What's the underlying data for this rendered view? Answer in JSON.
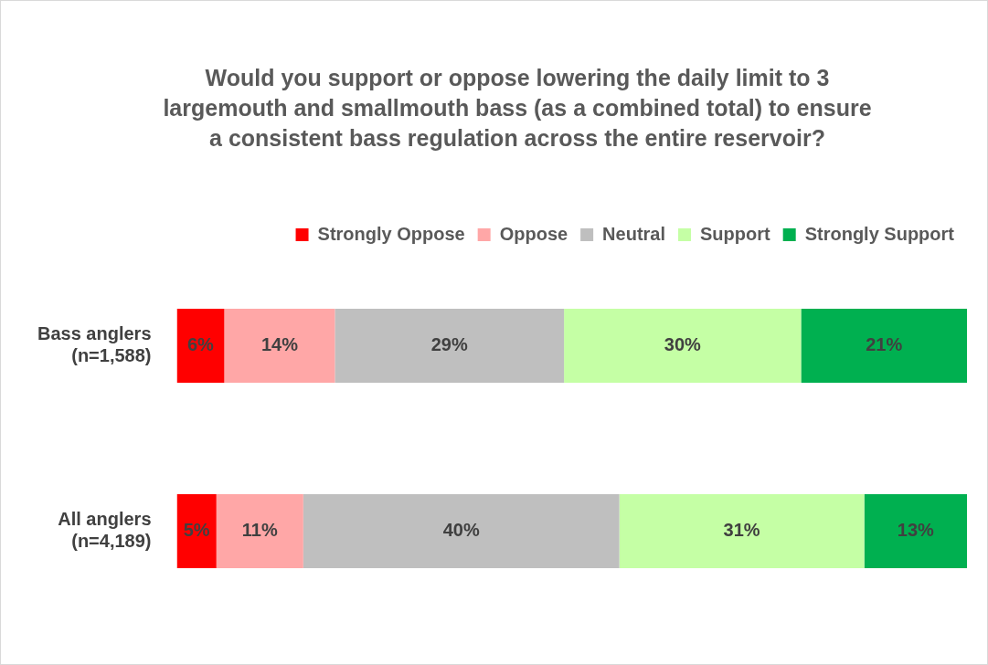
{
  "chart_data": {
    "type": "bar",
    "orientation": "horizontal",
    "stacked": true,
    "title": "Would you support or oppose lowering the daily limit to 3 largemouth and smallmouth bass (as a combined total) to ensure a consistent bass regulation across the entire reservoir?",
    "categories": [
      "Bass anglers\n(n=1,588)",
      "All anglers\n(n=4,189)"
    ],
    "xlim": [
      0,
      100
    ],
    "tick_labels": "y",
    "legend": "top",
    "series": [
      {
        "name": "Strongly Oppose",
        "color": "#ff0000",
        "values": [
          6,
          5
        ],
        "value_labels": [
          "6%",
          "5%"
        ]
      },
      {
        "name": "Oppose",
        "color": "#ffa7a7",
        "values": [
          14,
          11
        ],
        "value_labels": [
          "14%",
          "11%"
        ]
      },
      {
        "name": "Neutral",
        "color": "#bfbfbf",
        "values": [
          29,
          40
        ],
        "value_labels": [
          "29%",
          "40%"
        ]
      },
      {
        "name": "Support",
        "color": "#c5ffa5",
        "values": [
          30,
          31
        ],
        "value_labels": [
          "30%",
          "31%"
        ]
      },
      {
        "name": "Strongly Support",
        "color": "#00b050",
        "values": [
          21,
          13
        ],
        "value_labels": [
          "21%",
          "13%"
        ]
      }
    ]
  }
}
